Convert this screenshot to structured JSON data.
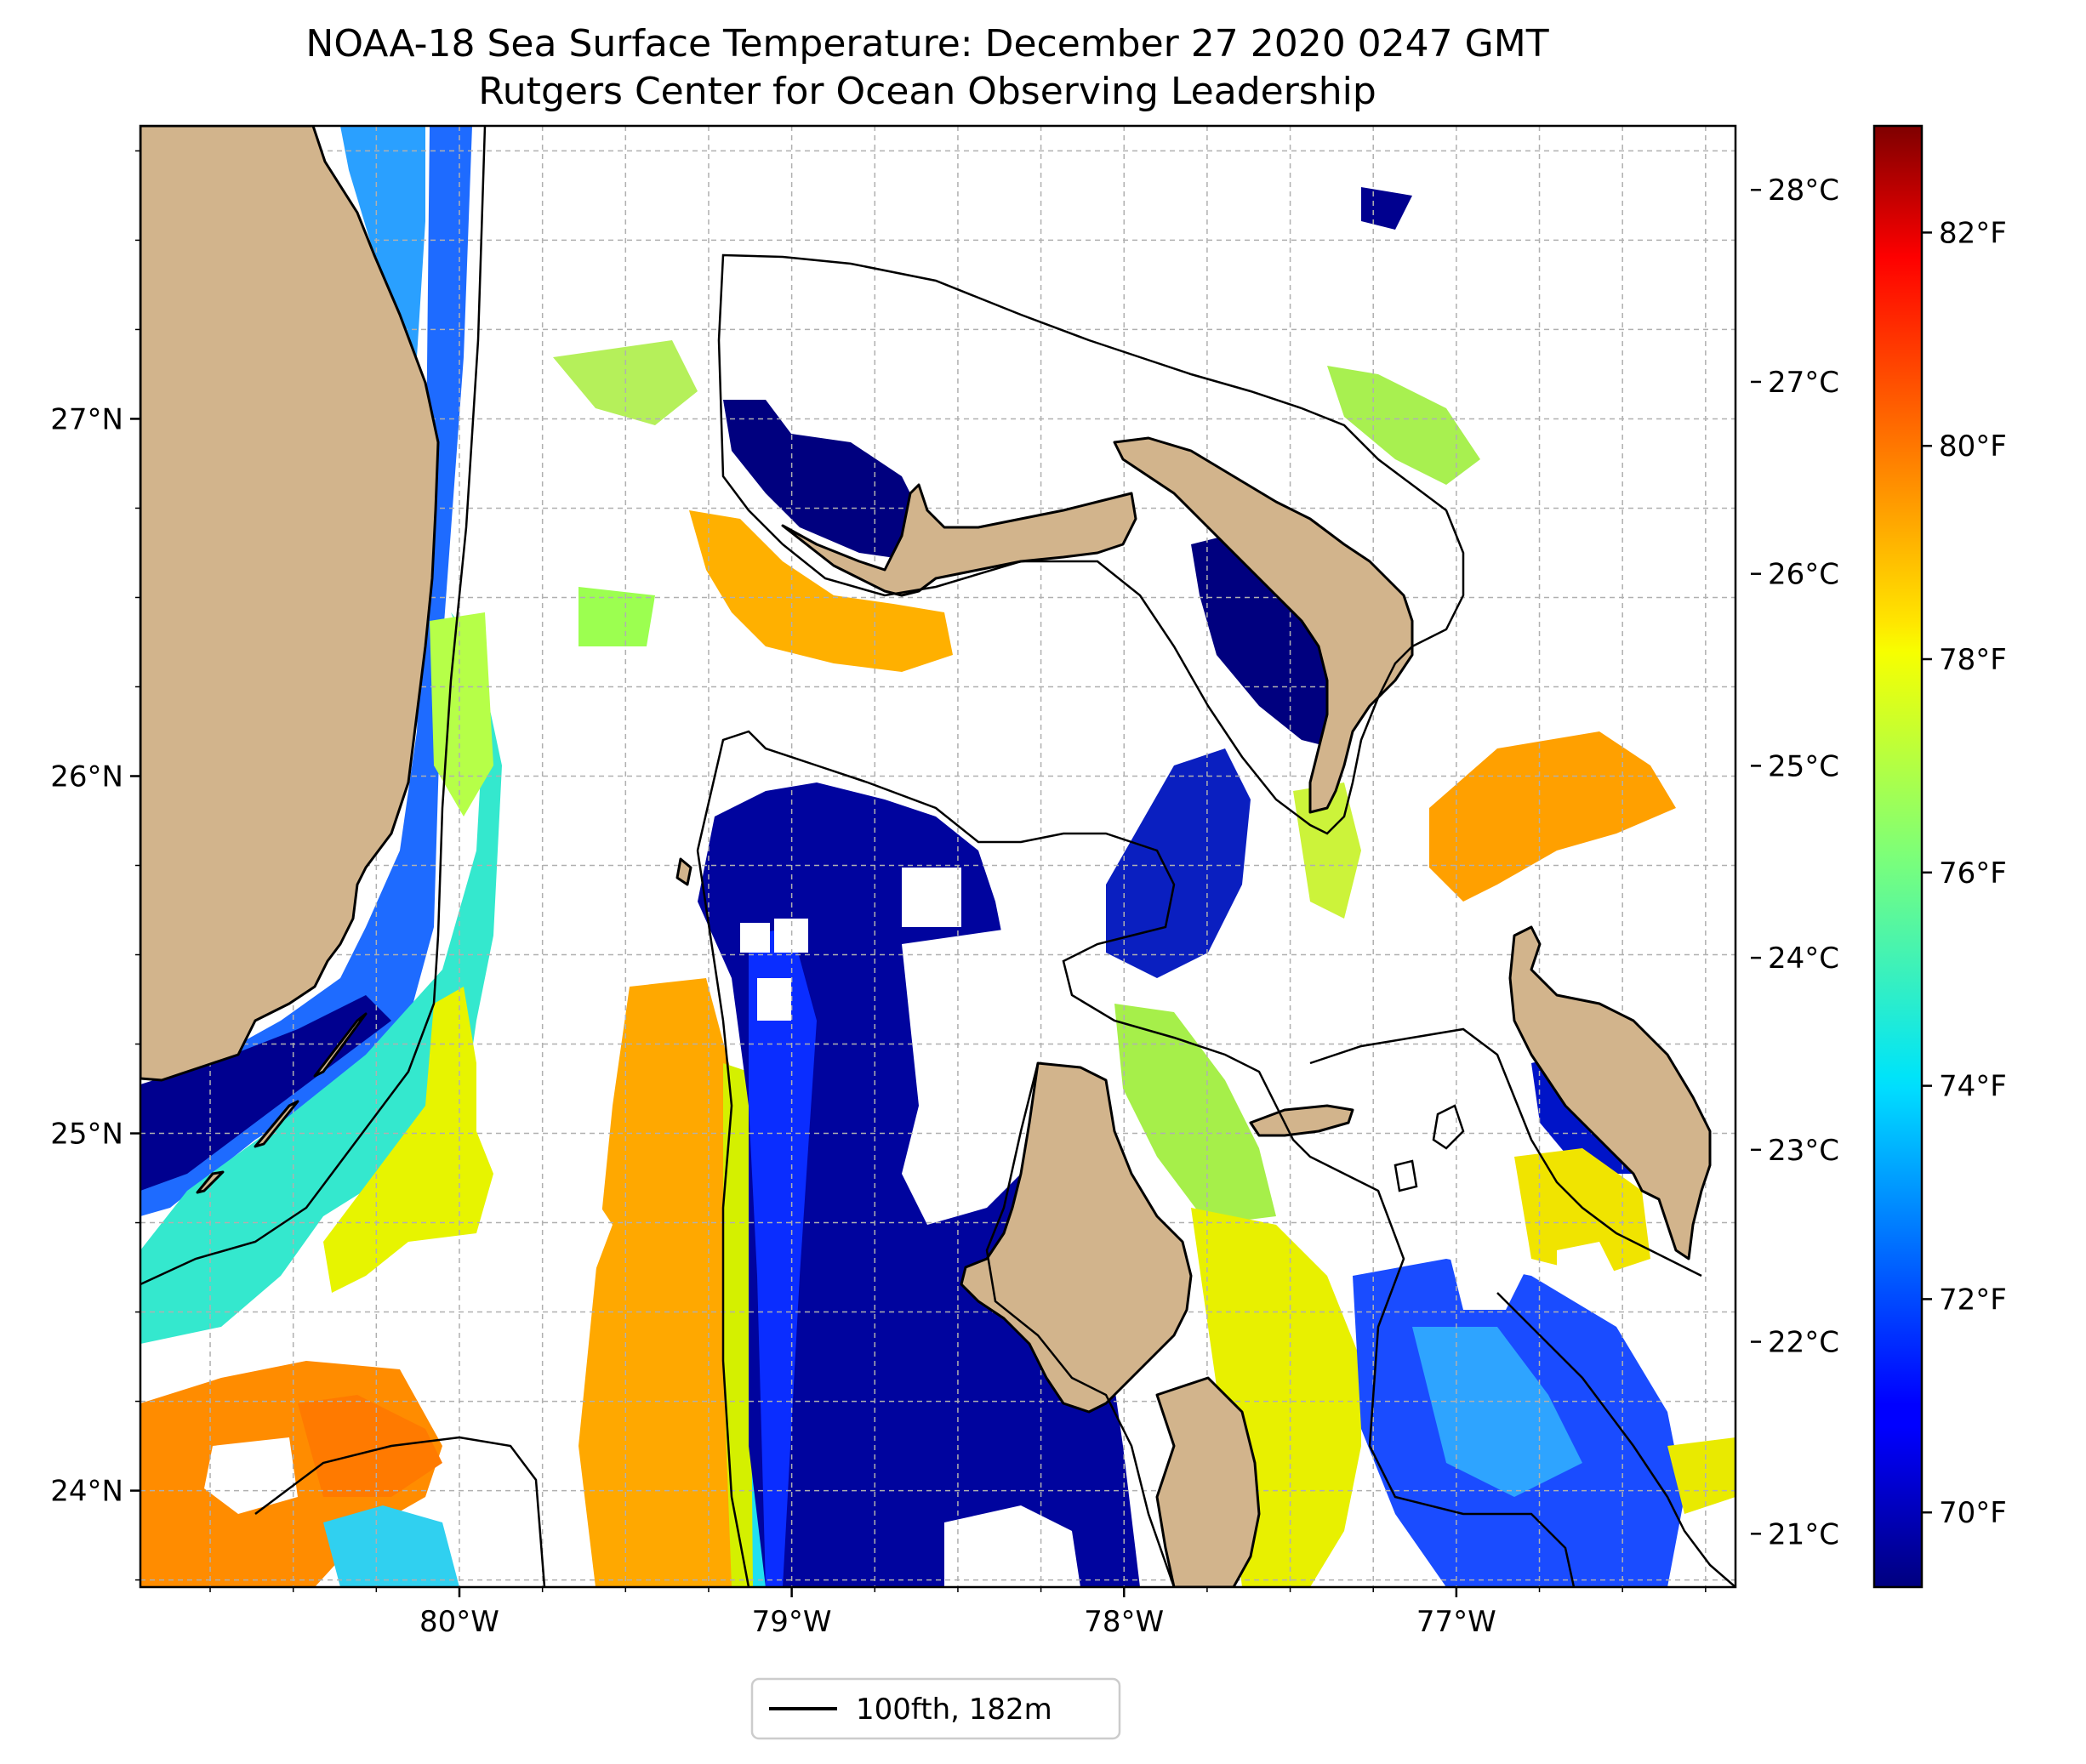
{
  "title": {
    "line1": "NOAA-18 Sea Surface Temperature: December 27 2020 0247 GMT",
    "line2": "Rutgers Center for Ocean Observing Leadership"
  },
  "map": {
    "projection": "plate-carree",
    "lon_range": [
      -80.96,
      -76.16
    ],
    "lat_range": [
      23.73,
      27.82
    ],
    "lat_ticks": [
      {
        "value": 27,
        "label": "27°N"
      },
      {
        "value": 26,
        "label": "26°N"
      },
      {
        "value": 25,
        "label": "25°N"
      },
      {
        "value": 24,
        "label": "24°N"
      }
    ],
    "lon_ticks": [
      {
        "value": -80,
        "label": "80°W"
      },
      {
        "value": -79,
        "label": "79°W"
      },
      {
        "value": -78,
        "label": "78°W"
      },
      {
        "value": -77,
        "label": "77°W"
      }
    ],
    "gridlines": "dashed",
    "colors": {
      "land": "#d2b48c",
      "land_edge": "#000000",
      "grid": "#b0b0b0",
      "contour": "#000000",
      "cloud": "#ffffff"
    }
  },
  "colorbar": {
    "colormap": "jet",
    "celsius_ticks": [
      {
        "value": 21,
        "label": "21°C"
      },
      {
        "value": 22,
        "label": "22°C"
      },
      {
        "value": 23,
        "label": "23°C"
      },
      {
        "value": 24,
        "label": "24°C"
      },
      {
        "value": 25,
        "label": "25°C"
      },
      {
        "value": 26,
        "label": "26°C"
      },
      {
        "value": 27,
        "label": "27°C"
      },
      {
        "value": 28,
        "label": "28°C"
      }
    ],
    "fahrenheit_ticks": [
      {
        "value": 70,
        "label": "70°F"
      },
      {
        "value": 72,
        "label": "72°F"
      },
      {
        "value": 74,
        "label": "74°F"
      },
      {
        "value": 76,
        "label": "76°F"
      },
      {
        "value": 78,
        "label": "78°F"
      },
      {
        "value": 80,
        "label": "80°F"
      },
      {
        "value": 82,
        "label": "82°F"
      }
    ],
    "range_f": [
      69.3,
      83.0
    ]
  },
  "legend": {
    "label": "100fth, 182m"
  }
}
